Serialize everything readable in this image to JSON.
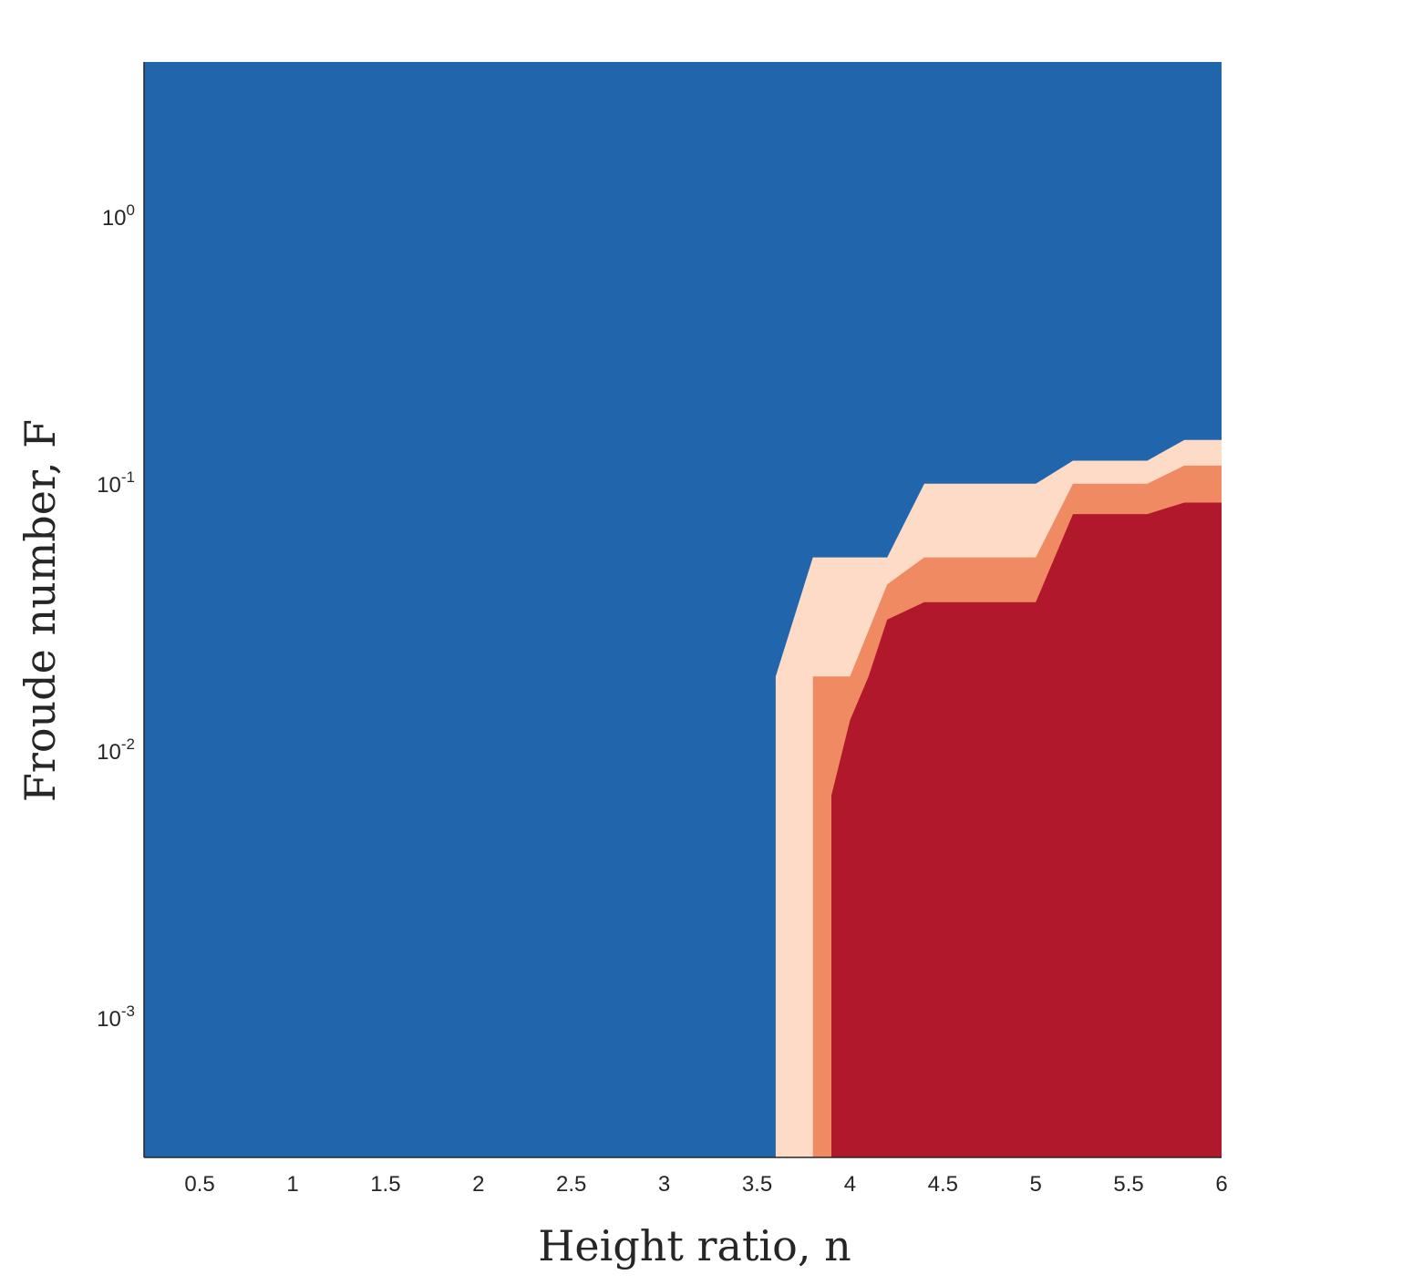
{
  "chart_data": {
    "type": "area",
    "chart_style": "filled contour",
    "xlabel": "Height ratio, n",
    "ylabel": "Froude number, F",
    "y_scale": "log",
    "xlim": [
      0.2,
      6.0
    ],
    "ylim": [
      0.0003,
      3.8
    ],
    "x_ticks": [
      0.5,
      1,
      1.5,
      2,
      2.5,
      3,
      3.5,
      4,
      4.5,
      5,
      5.5,
      6
    ],
    "x_tick_labels": [
      "0.5",
      "1",
      "1.5",
      "2",
      "2.5",
      "3",
      "3.5",
      "4",
      "4.5",
      "5",
      "5.5",
      "6"
    ],
    "y_ticks": [
      {
        "value": 0.001,
        "base": "10",
        "exp": "-3"
      },
      {
        "value": 0.01,
        "base": "10",
        "exp": "-2"
      },
      {
        "value": 0.1,
        "base": "10",
        "exp": "-1"
      },
      {
        "value": 1,
        "base": "10",
        "exp": "0"
      }
    ],
    "grid": false,
    "background_color": "#2166ac",
    "series": [
      {
        "color": "#fddbc7",
        "points": [
          [
            3.6,
            0.0003
          ],
          [
            3.6,
            0.019
          ],
          [
            3.8,
            0.053
          ],
          [
            4.2,
            0.053
          ],
          [
            4.4,
            0.1
          ],
          [
            5.0,
            0.1
          ],
          [
            5.2,
            0.122
          ],
          [
            5.6,
            0.122
          ],
          [
            5.8,
            0.146
          ],
          [
            6.0,
            0.146
          ],
          [
            6.0,
            0.0003
          ]
        ]
      },
      {
        "color": "#ef8a62",
        "points": [
          [
            3.8,
            0.0003
          ],
          [
            3.8,
            0.019
          ],
          [
            4.0,
            0.019
          ],
          [
            4.2,
            0.042
          ],
          [
            4.4,
            0.053
          ],
          [
            5.0,
            0.053
          ],
          [
            5.2,
            0.1
          ],
          [
            5.6,
            0.1
          ],
          [
            5.8,
            0.117
          ],
          [
            6.0,
            0.117
          ],
          [
            6.0,
            0.0003
          ]
        ]
      },
      {
        "color": "#b2182b",
        "points": [
          [
            3.9,
            0.0003
          ],
          [
            3.9,
            0.0068
          ],
          [
            4.0,
            0.013
          ],
          [
            4.1,
            0.019
          ],
          [
            4.2,
            0.031
          ],
          [
            4.4,
            0.036
          ],
          [
            5.0,
            0.036
          ],
          [
            5.2,
            0.077
          ],
          [
            5.6,
            0.077
          ],
          [
            5.8,
            0.085
          ],
          [
            6.0,
            0.085
          ],
          [
            6.0,
            0.0003
          ]
        ]
      }
    ]
  }
}
